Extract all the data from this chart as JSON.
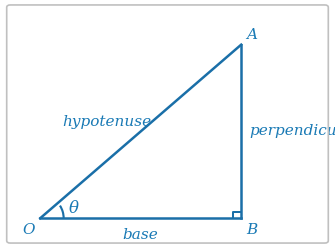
{
  "triangle_color": "#1a6fa8",
  "background_color": "#ffffff",
  "border_color": "#c0c0c0",
  "O": [
    0.12,
    0.12
  ],
  "B": [
    0.72,
    0.12
  ],
  "A": [
    0.72,
    0.82
  ],
  "label_O": "O",
  "label_A": "A",
  "label_B": "B",
  "label_hypotenuse": "hypotenuse",
  "label_perpendicular": "perpendicular",
  "label_base": "base",
  "label_theta": "θ",
  "font_color": "#1a7ab5",
  "font_size_labels": 11,
  "font_size_vertex": 11,
  "font_size_theta": 12,
  "line_width": 1.8,
  "sq_size": 0.025
}
